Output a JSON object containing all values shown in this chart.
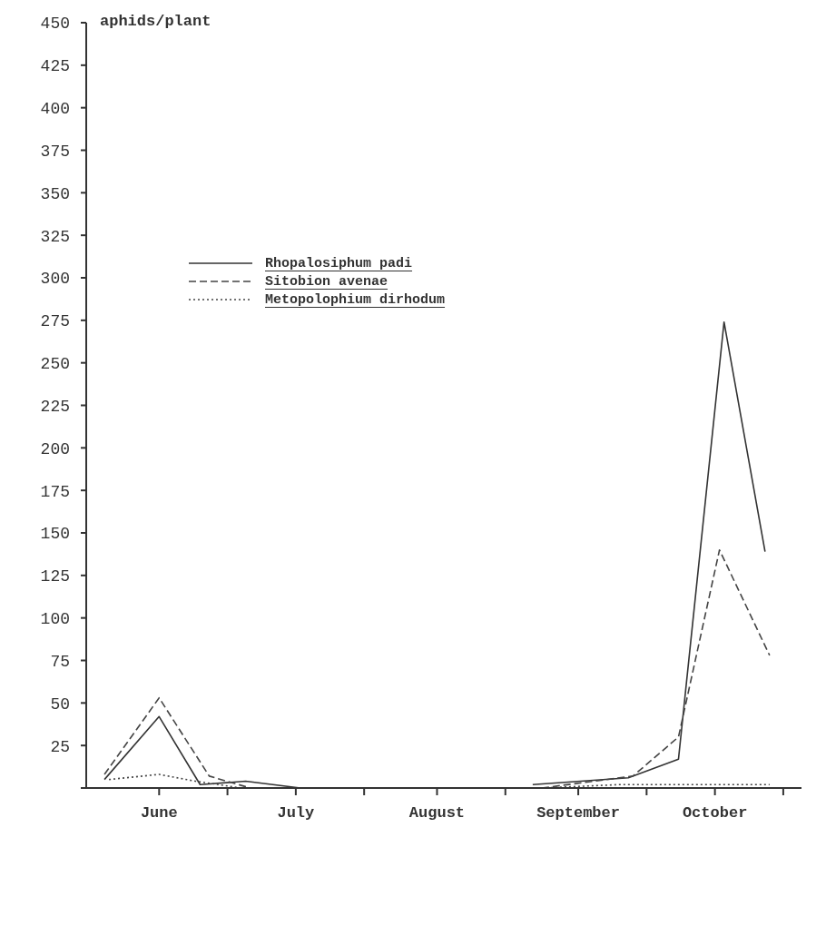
{
  "chart_data": {
    "type": "line",
    "ylabel": "aphids/plant",
    "xlim": [
      "--05-16",
      "--10-20"
    ],
    "xticks": [
      {
        "value": "--06-01",
        "label": "June"
      },
      {
        "value": "--06-16",
        "label": null
      },
      {
        "value": "--07-01",
        "label": "July"
      },
      {
        "value": "--07-16",
        "label": null
      },
      {
        "value": "--08-01",
        "label": "August"
      },
      {
        "value": "--08-16",
        "label": null
      },
      {
        "value": "--09-01",
        "label": "September"
      },
      {
        "value": "--09-16",
        "label": null
      },
      {
        "value": "--10-01",
        "label": "October"
      },
      {
        "value": "--10-16",
        "label": null
      }
    ],
    "ylim": [
      0,
      450
    ],
    "yticks": [
      {
        "value": 0,
        "label": null
      },
      25,
      50,
      75,
      100,
      125,
      150,
      175,
      200,
      225,
      250,
      275,
      300,
      325,
      350,
      375,
      400,
      425,
      450
    ],
    "legend": "top left",
    "marker": "none",
    "series": [
      {
        "name": "Rhopalosiphum padi",
        "color": "#333333",
        "line_style": "solid",
        "x": [
          "--05-20",
          "--06-01",
          "--06-10",
          "--06-20",
          "--07-02",
          "--08-01",
          "--08-22",
          "--09-12",
          "--09-23",
          "--10-03",
          "--10-12"
        ],
        "values": [
          5,
          42,
          2,
          4,
          0,
          null,
          2,
          6,
          17,
          274,
          139
        ]
      },
      {
        "name": "Sitobion avenae",
        "color": "#444444",
        "line_style": "dashed",
        "x": [
          "--05-20",
          "--06-01",
          "--06-12",
          "--06-21",
          "--08-01",
          "--08-24",
          "--09-13",
          "--09-23",
          "--10-02",
          "--10-13"
        ],
        "values": [
          8,
          53,
          7,
          0,
          null,
          0,
          7,
          30,
          140,
          78
        ]
      },
      {
        "name": "Metopolophium dirhodum",
        "color": "#444444",
        "line_style": "dotted",
        "x": [
          "--05-21",
          "--06-01",
          "--06-09",
          "--06-19",
          "--08-01",
          "--08-24",
          "--09-10",
          "--10-13"
        ],
        "values": [
          5,
          8,
          4,
          0,
          null,
          0,
          2,
          2
        ]
      }
    ]
  }
}
